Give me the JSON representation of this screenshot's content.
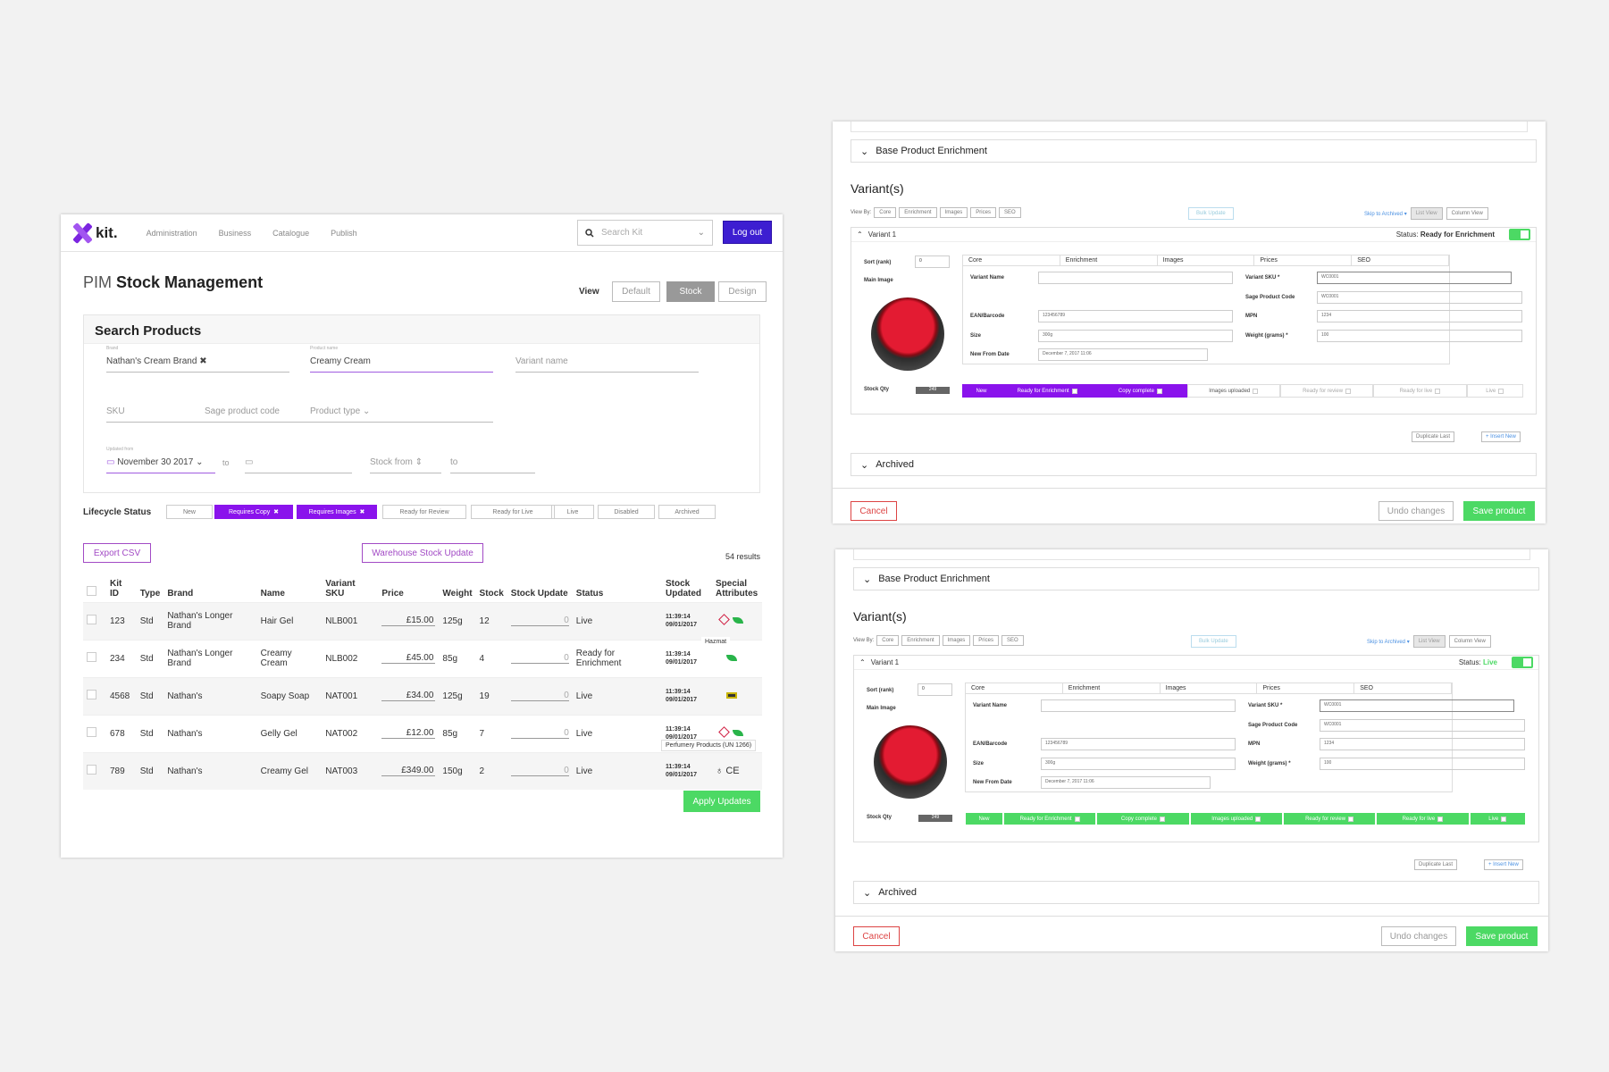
{
  "main": {
    "nav": [
      "Administration",
      "Business",
      "Catalogue",
      "Publish"
    ],
    "search_placeholder": "Search Kit",
    "logout": "Log out",
    "title_prefix": "PIM",
    "title": "Stock Management",
    "view_label": "View",
    "views": [
      "Default",
      "Stock",
      "Design"
    ],
    "search_title": "Search Products",
    "brand_label": "Brand",
    "brand": "Nathan's Cream Brand",
    "product_label": "Product name",
    "product": "Creamy Cream",
    "variant_ph": "Variant name",
    "sku_ph": "SKU",
    "sage_ph": "Sage product code",
    "ptype_ph": "Product type",
    "updated_label": "Updated from",
    "date": "November 30 2017",
    "to": "to",
    "stock_from": "Stock from",
    "stock_to": "to",
    "lifecycle_label": "Lifecycle Status",
    "lifecycle": [
      "New",
      "Requires Copy",
      "Requires Images",
      "Ready for Review",
      "Ready for Live",
      "Live",
      "Disabled",
      "Archived"
    ],
    "export": "Export CSV",
    "warehouse": "Warehouse Stock Update",
    "results": "54 results",
    "columns": [
      "Kit ID",
      "Type",
      "Brand",
      "Name",
      "Variant SKU",
      "Price",
      "Weight",
      "Stock",
      "Stock Update",
      "Status",
      "Stock Updated",
      "Special Attributes"
    ],
    "rows": [
      {
        "id": "123",
        "type": "Std",
        "brand": "Nathan's Longer Brand",
        "name": "Hair Gel",
        "sku": "NLB001",
        "price": "£15.00",
        "weight": "125g",
        "stock": "12",
        "upd": "0",
        "status": "Live",
        "time": "11:39:14",
        "date": "09/01/2017"
      },
      {
        "id": "234",
        "type": "Std",
        "brand": "Nathan's Longer Brand",
        "name": "Creamy Cream",
        "sku": "NLB002",
        "price": "£45.00",
        "weight": "85g",
        "stock": "4",
        "upd": "0",
        "status": "Ready for Enrichment",
        "time": "11:39:14",
        "date": "09/01/2017"
      },
      {
        "id": "4568",
        "type": "Std",
        "brand": "Nathan's",
        "name": "Soapy Soap",
        "sku": "NAT001",
        "price": "£34.00",
        "weight": "125g",
        "stock": "19",
        "upd": "0",
        "status": "Live",
        "time": "11:39:14",
        "date": "09/01/2017"
      },
      {
        "id": "678",
        "type": "Std",
        "brand": "Nathan's",
        "name": "Gelly Gel",
        "sku": "NAT002",
        "price": "£12.00",
        "weight": "85g",
        "stock": "7",
        "upd": "0",
        "status": "Live",
        "time": "11:39:14",
        "date": "09/01/2017"
      },
      {
        "id": "789",
        "type": "Std",
        "brand": "Nathan's",
        "name": "Creamy Gel",
        "sku": "NAT003",
        "price": "£349.00",
        "weight": "150g",
        "stock": "2",
        "upd": "0",
        "status": "Live",
        "time": "11:39:14",
        "date": "09/01/2017"
      }
    ],
    "hazmat_tip": "Hazmat",
    "perfumery_tip": "Perfumery Products (UN 1266)",
    "ce": "CE",
    "apply": "Apply Updates"
  },
  "editor": {
    "base": "Base Product Enrichment",
    "variants": "Variant(s)",
    "viewby": "View By:",
    "views": [
      "Core",
      "Enrichment",
      "Images",
      "Prices",
      "SEO"
    ],
    "bulk": "Bulk Update",
    "skip": "Skip to Archived ▾",
    "listview": "List View",
    "columnview": "Column View",
    "variant": "Variant 1",
    "status_label": "Status:",
    "status1": "Ready for Enrichment",
    "status2": "Live",
    "sort_label": "Sort (rank)",
    "sort_val": "0",
    "main_image": "Main Image",
    "stock_qty": "Stock Qty",
    "qty": "249",
    "tabs": [
      "Core",
      "Enrichment",
      "Images",
      "Prices",
      "SEO"
    ],
    "variant_name": "Variant Name",
    "variant_sku": "Variant SKU *",
    "sku_val": "WC0001",
    "sage": "Sage Product Code",
    "sage_val": "WC0001",
    "ean": "EAN/Barcode",
    "ean_val": "123456789",
    "mpn": "MPN",
    "mpn_val": "1234",
    "size": "Size",
    "size_val": "300g",
    "weight": "Weight (grams) *",
    "weight_val": "100",
    "newfrom": "New From Date",
    "newfrom_val": "December 7, 2017 11:06",
    "statuses": [
      "New",
      "Ready for Enrichment",
      "Copy complete",
      "Images uploaded",
      "Ready for review",
      "Ready for live",
      "Live"
    ],
    "dup": "Duplicate Last",
    "insert": "+ Insert New",
    "archived": "Archived",
    "cancel": "Cancel",
    "undo": "Undo changes",
    "save": "Save product"
  }
}
